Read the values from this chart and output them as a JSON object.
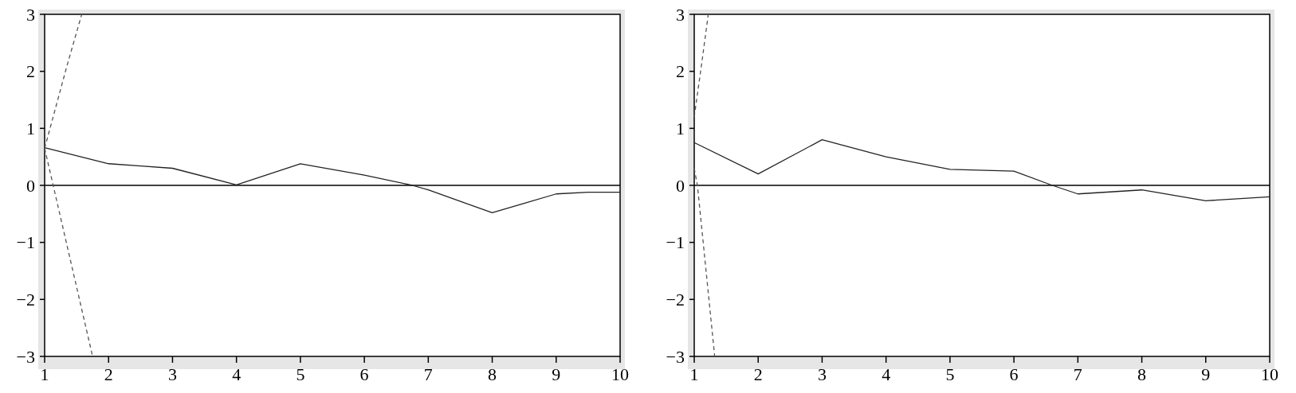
{
  "chart_data": [
    {
      "type": "line",
      "xlim": [
        1,
        10
      ],
      "xticks": [
        1,
        2,
        3,
        4,
        5,
        6,
        7,
        8,
        9,
        10
      ],
      "ylim": [
        -3,
        3
      ],
      "yticks": [
        -3,
        -2,
        -1,
        0,
        1,
        2,
        3
      ],
      "ref_lines": [
        {
          "axis": "y",
          "value": 0,
          "color": "#000000"
        }
      ],
      "series": [
        {
          "color": "#222222",
          "line_style": "solid",
          "x": [
            1,
            2,
            2.5,
            3,
            4,
            5,
            6,
            6.75,
            7,
            8,
            9,
            9.5,
            10
          ],
          "values": [
            0.66,
            0.38,
            0.34,
            0.3,
            0.01,
            0.38,
            0.18,
            0,
            -0.08,
            -0.48,
            -0.15,
            -0.12,
            -0.12
          ]
        },
        {
          "color": "#555555",
          "line_style": "dashed",
          "x": [
            1,
            1.35,
            1.58
          ],
          "values": [
            0.65,
            2.1,
            3
          ]
        },
        {
          "color": "#555555",
          "line_style": "dashed",
          "x": [
            1,
            1.75
          ],
          "values": [
            0.65,
            -3
          ]
        }
      ]
    },
    {
      "type": "line",
      "xlim": [
        1,
        10
      ],
      "xticks": [
        1,
        2,
        3,
        4,
        5,
        6,
        7,
        8,
        9,
        10
      ],
      "ylim": [
        -3,
        3
      ],
      "yticks": [
        -3,
        -2,
        -1,
        0,
        1,
        2,
        3
      ],
      "ref_lines": [
        {
          "axis": "y",
          "value": 0,
          "color": "#000000"
        }
      ],
      "series": [
        {
          "color": "#222222",
          "line_style": "solid",
          "x": [
            1,
            2,
            3,
            4,
            5,
            6,
            6.6,
            7,
            8,
            9,
            10
          ],
          "values": [
            0.75,
            0.2,
            0.8,
            0.5,
            0.28,
            0.25,
            0,
            -0.15,
            -0.08,
            -0.27,
            -0.2
          ]
        },
        {
          "color": "#555555",
          "line_style": "dashed",
          "x": [
            1,
            1.1,
            1.22
          ],
          "values": [
            1.2,
            2.0,
            3
          ]
        },
        {
          "color": "#555555",
          "line_style": "dashed",
          "x": [
            1,
            1.05,
            1.32
          ],
          "values": [
            0.3,
            0,
            -3
          ]
        }
      ]
    }
  ]
}
